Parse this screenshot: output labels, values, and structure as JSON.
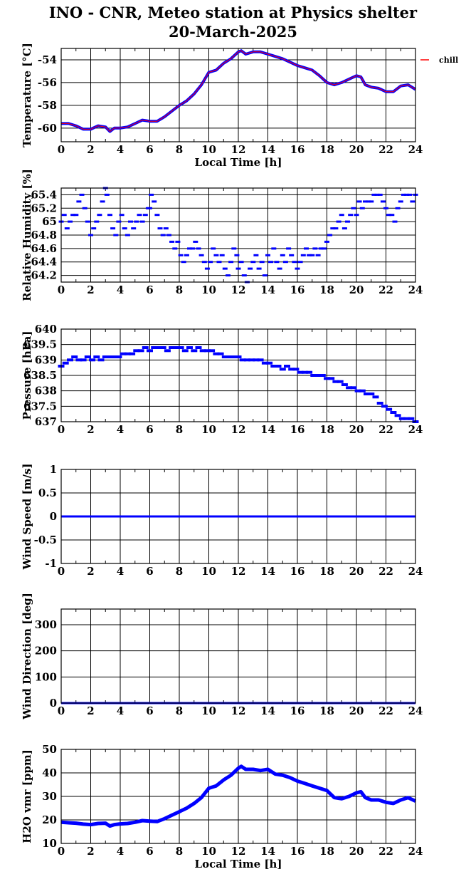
{
  "header": {
    "title": "INO - CNR, Meteo station at Physics shelter",
    "subtitle": "20-March-2025"
  },
  "colors": {
    "series": "#0000ff",
    "wind_chill": "#ff0000",
    "axis": "#000000",
    "grid": "#000000",
    "background": "#ffffff"
  },
  "chart_data": [
    {
      "id": "temperature",
      "type": "line",
      "ylabel": "Temperature [°C]",
      "xlabel": "Local Time [h]",
      "xlim": [
        0,
        24
      ],
      "ylim": [
        -61.2,
        -53
      ],
      "xticks": [
        0,
        2,
        4,
        6,
        8,
        10,
        12,
        14,
        16,
        18,
        20,
        22,
        24
      ],
      "yticks": [
        -60,
        -58,
        -56,
        -54
      ],
      "grid": true,
      "legend": {
        "position": "right",
        "entries": [
          "chill"
        ]
      },
      "series": [
        {
          "name": "chill",
          "color": "#ff0000",
          "x": [
            0,
            0.5,
            1,
            1.5,
            2,
            2.5,
            3,
            3.3,
            3.6,
            4,
            4.5,
            5,
            5.5,
            6,
            6.5,
            7,
            7.5,
            8,
            8.5,
            9,
            9.5,
            10,
            10.5,
            11,
            11.5,
            12,
            12.2,
            12.5,
            13,
            13.5,
            14,
            14.5,
            15,
            15.5,
            16,
            16.5,
            17,
            17.5,
            18,
            18.5,
            19,
            19.5,
            20,
            20.3,
            20.6,
            21,
            21.5,
            22,
            22.5,
            23,
            23.5,
            24
          ],
          "y": [
            -59.6,
            -59.6,
            -59.8,
            -60.1,
            -60.1,
            -59.8,
            -59.9,
            -60.3,
            -60.0,
            -60.0,
            -59.9,
            -59.6,
            -59.3,
            -59.4,
            -59.4,
            -59.0,
            -58.5,
            -58.0,
            -57.6,
            -57.0,
            -56.2,
            -55.1,
            -54.9,
            -54.3,
            -53.9,
            -53.3,
            -53.2,
            -53.5,
            -53.3,
            -53.3,
            -53.5,
            -53.7,
            -53.9,
            -54.2,
            -54.5,
            -54.7,
            -54.9,
            -55.4,
            -56.0,
            -56.2,
            -56.0,
            -55.7,
            -55.4,
            -55.5,
            -56.2,
            -56.4,
            -56.5,
            -56.8,
            -56.8,
            -56.3,
            -56.2,
            -56.6
          ]
        }
      ]
    },
    {
      "id": "humidity",
      "type": "scatter",
      "ylabel": "Relative Humidity [%]",
      "xlim": [
        0,
        24
      ],
      "ylim": [
        64.1,
        65.5
      ],
      "xticks": [
        0,
        2,
        4,
        6,
        8,
        10,
        12,
        14,
        16,
        18,
        20,
        22,
        24
      ],
      "yticks": [
        64.2,
        64.4,
        64.6,
        64.8,
        65,
        65.2,
        65.4
      ],
      "grid": true,
      "series": [
        {
          "name": "",
          "color": "#0000ff",
          "x": [
            0,
            0.2,
            0.4,
            0.6,
            0.8,
            1.0,
            1.2,
            1.4,
            1.6,
            1.8,
            2.0,
            2.2,
            2.4,
            2.6,
            2.8,
            3.0,
            3.1,
            3.3,
            3.5,
            3.7,
            3.9,
            4.1,
            4.3,
            4.5,
            4.7,
            4.9,
            5.1,
            5.3,
            5.5,
            5.7,
            5.9,
            6.0,
            6.1,
            6.3,
            6.5,
            6.7,
            6.9,
            7.1,
            7.3,
            7.5,
            7.7,
            7.9,
            8.1,
            8.3,
            8.5,
            8.7,
            8.9,
            9.1,
            9.3,
            9.5,
            9.7,
            9.9,
            10.1,
            10.3,
            10.5,
            10.7,
            10.9,
            11.1,
            11.3,
            11.5,
            11.7,
            11.9,
            12.0,
            12.2,
            12.4,
            12.6,
            12.8,
            13.0,
            13.2,
            13.4,
            13.6,
            13.8,
            14.0,
            14.2,
            14.4,
            14.6,
            14.8,
            15.0,
            15.2,
            15.4,
            15.6,
            15.8,
            16.0,
            16.2,
            16.4,
            16.6,
            16.8,
            17.0,
            17.2,
            17.4,
            17.6,
            17.8,
            18.0,
            18.2,
            18.4,
            18.6,
            18.8,
            19.0,
            19.2,
            19.4,
            19.6,
            19.8,
            20.0,
            20.2,
            20.4,
            20.6,
            20.8,
            21.0,
            21.2,
            21.4,
            21.6,
            21.8,
            22.0,
            22.2,
            22.4,
            22.6,
            22.8,
            23.0,
            23.2,
            23.4,
            23.6,
            23.8,
            24.0
          ],
          "y": [
            65.0,
            65.1,
            64.9,
            65.0,
            65.1,
            65.1,
            65.3,
            65.4,
            65.2,
            65.0,
            64.8,
            64.9,
            65.0,
            65.1,
            65.3,
            65.5,
            65.4,
            65.1,
            64.9,
            64.8,
            65.0,
            65.1,
            64.9,
            64.8,
            65.0,
            64.9,
            65.0,
            65.1,
            65.0,
            65.1,
            65.2,
            65.2,
            65.4,
            65.3,
            65.1,
            64.9,
            64.8,
            64.9,
            64.8,
            64.7,
            64.6,
            64.7,
            64.5,
            64.4,
            64.5,
            64.6,
            64.6,
            64.7,
            64.6,
            64.5,
            64.4,
            64.3,
            64.4,
            64.6,
            64.5,
            64.4,
            64.5,
            64.3,
            64.2,
            64.4,
            64.6,
            64.5,
            64.3,
            64.4,
            64.2,
            64.1,
            64.3,
            64.4,
            64.5,
            64.3,
            64.4,
            64.2,
            64.5,
            64.4,
            64.6,
            64.4,
            64.3,
            64.5,
            64.4,
            64.6,
            64.5,
            64.4,
            64.3,
            64.4,
            64.5,
            64.6,
            64.5,
            64.5,
            64.6,
            64.5,
            64.6,
            64.6,
            64.7,
            64.8,
            64.9,
            64.9,
            65.0,
            65.1,
            64.9,
            65.0,
            65.1,
            65.2,
            65.1,
            65.3,
            65.2,
            65.3,
            65.3,
            65.3,
            65.4,
            65.4,
            65.4,
            65.3,
            65.2,
            65.1,
            65.1,
            65.0,
            65.2,
            65.3,
            65.4,
            65.4,
            65.4,
            65.3,
            65.4
          ]
        }
      ]
    },
    {
      "id": "pressure",
      "type": "scatter",
      "ylabel": "Pressure [hPa]",
      "xlim": [
        0,
        24
      ],
      "ylim": [
        637,
        640
      ],
      "xticks": [
        0,
        2,
        4,
        6,
        8,
        10,
        12,
        14,
        16,
        18,
        20,
        22,
        24
      ],
      "yticks": [
        637,
        637.5,
        638,
        638.5,
        639,
        639.5,
        640
      ],
      "grid": true,
      "series": [
        {
          "name": "",
          "color": "#0000ff",
          "x": [
            0,
            0.3,
            0.6,
            0.9,
            1.2,
            1.5,
            1.8,
            2.1,
            2.4,
            2.7,
            3.0,
            3.3,
            3.6,
            3.9,
            4.2,
            4.5,
            4.8,
            5.1,
            5.4,
            5.7,
            6.0,
            6.3,
            6.6,
            6.9,
            7.2,
            7.5,
            7.8,
            8.1,
            8.4,
            8.7,
            9.0,
            9.3,
            9.6,
            9.9,
            10.2,
            10.5,
            10.8,
            11.1,
            11.4,
            11.7,
            12.0,
            12.3,
            12.6,
            12.9,
            13.2,
            13.5,
            13.8,
            14.1,
            14.4,
            14.7,
            15.0,
            15.3,
            15.6,
            15.9,
            16.2,
            16.5,
            16.8,
            17.1,
            17.4,
            17.7,
            18.0,
            18.3,
            18.6,
            18.9,
            19.2,
            19.5,
            19.8,
            20.1,
            20.4,
            20.7,
            21.0,
            21.3,
            21.6,
            21.9,
            22.2,
            22.5,
            22.8,
            23.1,
            23.4,
            23.7,
            24.0
          ],
          "y": [
            638.8,
            638.9,
            639.0,
            639.1,
            639.0,
            639.0,
            639.1,
            639.0,
            639.1,
            639.0,
            639.1,
            639.1,
            639.1,
            639.1,
            639.2,
            639.2,
            639.2,
            639.3,
            639.3,
            639.4,
            639.3,
            639.4,
            639.4,
            639.4,
            639.3,
            639.4,
            639.4,
            639.4,
            639.3,
            639.4,
            639.3,
            639.4,
            639.3,
            639.3,
            639.3,
            639.2,
            639.2,
            639.1,
            639.1,
            639.1,
            639.1,
            639.0,
            639.0,
            639.0,
            639.0,
            639.0,
            638.9,
            638.9,
            638.8,
            638.8,
            638.7,
            638.8,
            638.7,
            638.7,
            638.6,
            638.6,
            638.6,
            638.5,
            638.5,
            638.5,
            638.4,
            638.4,
            638.3,
            638.3,
            638.2,
            638.1,
            638.1,
            638.0,
            638.0,
            637.9,
            637.9,
            637.8,
            637.6,
            637.5,
            637.4,
            637.3,
            637.2,
            637.1,
            637.1,
            637.1,
            637.0
          ]
        }
      ]
    },
    {
      "id": "wind_speed",
      "type": "line",
      "ylabel": "Wind Speed [m/s]",
      "xlim": [
        0,
        24
      ],
      "ylim": [
        -1,
        1
      ],
      "xticks": [
        0,
        2,
        4,
        6,
        8,
        10,
        12,
        14,
        16,
        18,
        20,
        22,
        24
      ],
      "yticks": [
        -1,
        -0.5,
        0,
        0.5,
        1
      ],
      "grid": true,
      "series": [
        {
          "name": "",
          "color": "#0000ff",
          "x": [
            0,
            24
          ],
          "y": [
            0,
            0
          ]
        }
      ]
    },
    {
      "id": "wind_direction",
      "type": "line",
      "ylabel": "Wind Direction [deg]",
      "xlim": [
        0,
        24
      ],
      "ylim": [
        0,
        360
      ],
      "xticks": [
        0,
        2,
        4,
        6,
        8,
        10,
        12,
        14,
        16,
        18,
        20,
        22,
        24
      ],
      "yticks": [
        0,
        100,
        200,
        300
      ],
      "grid": true,
      "series": [
        {
          "name": "",
          "color": "#0000ff",
          "x": [
            0,
            24
          ],
          "y": [
            0,
            0
          ]
        }
      ]
    },
    {
      "id": "h2o",
      "type": "line",
      "ylabel": "H2O vmr [ppm]",
      "xlabel": "Local Time [h]",
      "xlim": [
        0,
        24
      ],
      "ylim": [
        10,
        50
      ],
      "xticks": [
        0,
        2,
        4,
        6,
        8,
        10,
        12,
        14,
        16,
        18,
        20,
        22,
        24
      ],
      "yticks": [
        10,
        20,
        30,
        40,
        50
      ],
      "grid": true,
      "series": [
        {
          "name": "",
          "color": "#0000ff",
          "x": [
            0,
            0.5,
            1,
            1.5,
            2,
            2.5,
            3,
            3.3,
            3.6,
            4,
            4.5,
            5,
            5.5,
            6,
            6.5,
            7,
            7.5,
            8,
            8.5,
            9,
            9.5,
            10,
            10.5,
            11,
            11.5,
            12,
            12.2,
            12.5,
            13,
            13.5,
            14,
            14.5,
            15,
            15.5,
            16,
            16.5,
            17,
            17.5,
            18,
            18.5,
            19,
            19.5,
            20,
            20.3,
            20.6,
            21,
            21.5,
            22,
            22.5,
            23,
            23.5,
            24
          ],
          "y": [
            19.0,
            18.8,
            18.6,
            18.2,
            18.0,
            18.5,
            18.6,
            17.4,
            18.0,
            18.3,
            18.5,
            19.0,
            19.7,
            19.5,
            19.3,
            20.5,
            22.0,
            23.5,
            25.0,
            27.0,
            29.5,
            33.5,
            34.5,
            37.0,
            39.0,
            42.0,
            42.8,
            41.5,
            41.5,
            41.0,
            41.5,
            39.5,
            39.0,
            38.0,
            36.5,
            35.5,
            34.5,
            33.5,
            32.5,
            29.5,
            29.0,
            30.0,
            31.5,
            32.0,
            29.5,
            28.5,
            28.5,
            27.5,
            27.0,
            28.5,
            29.5,
            28.0
          ]
        }
      ]
    }
  ]
}
